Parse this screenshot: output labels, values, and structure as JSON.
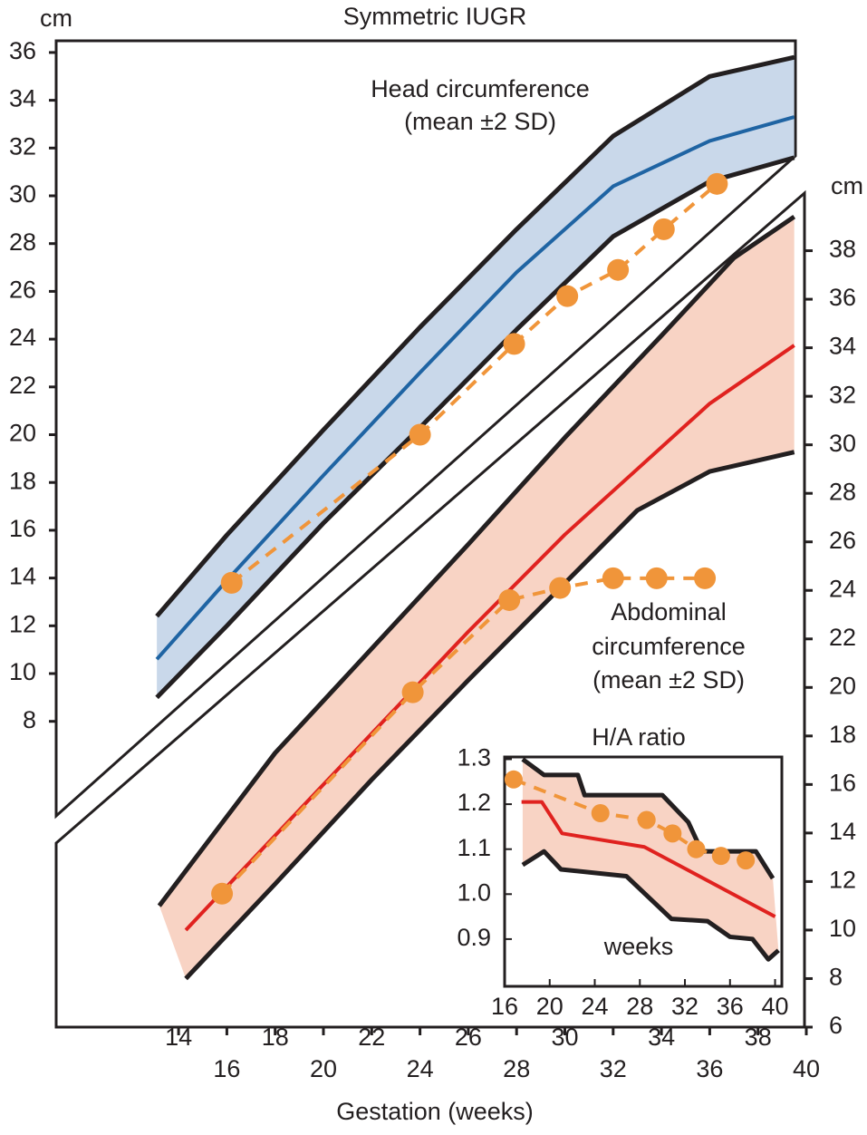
{
  "chart_data": [
    {
      "type": "line",
      "title": "Symmetric IUGR",
      "x_label": "Gestation (weeks)",
      "y_label": "cm",
      "y2_label": "cm",
      "annotations": [
        "Head circumference",
        "(mean ±2 SD)",
        "Abdominal",
        "circumference",
        "(mean ±2 SD)"
      ],
      "xlim": [
        8.93,
        40
      ],
      "xticks": [
        14,
        16,
        18,
        20,
        22,
        24,
        26,
        28,
        30,
        32,
        34,
        36,
        38,
        40
      ],
      "ylim": [
        -4.8,
        36.3
      ],
      "yticks": [
        8,
        10,
        12,
        14,
        16,
        18,
        20,
        22,
        24,
        26,
        28,
        30,
        32,
        34,
        36
      ],
      "y2lim": [
        6,
        40.3
      ],
      "y2ticks": [
        6,
        8,
        10,
        12,
        14,
        16,
        18,
        20,
        22,
        24,
        26,
        28,
        30,
        32,
        34,
        36,
        38
      ],
      "series": [
        {
          "color": "#231f20",
          "fill": "#c9d8ea",
          "x": [
            13.1,
            16,
            20,
            24,
            28,
            32,
            36,
            39.5
          ],
          "values": [
            12.4,
            15.8,
            20.2,
            24.5,
            28.6,
            32.5,
            35.0,
            35.8
          ]
        },
        {
          "color": "#1f64a3",
          "x": [
            13.1,
            16,
            20,
            24,
            28,
            32,
            36,
            39.5
          ],
          "values": [
            10.6,
            13.9,
            18.3,
            22.6,
            26.8,
            30.4,
            32.3,
            33.3
          ]
        },
        {
          "color": "#231f20",
          "x": [
            13.1,
            16,
            20,
            24,
            28,
            32,
            36,
            39.5
          ],
          "values": [
            9.0,
            12.0,
            16.3,
            20.3,
            24.4,
            28.3,
            30.6,
            31.6
          ]
        },
        {
          "color": "#f0953a",
          "dashed": true,
          "markers": true,
          "x": [
            16.2,
            24,
            27.9,
            30.1,
            32.2,
            34.1,
            36.3
          ],
          "values": [
            13.8,
            20.0,
            23.8,
            25.8,
            26.9,
            28.6,
            30.5
          ]
        },
        {
          "color": "#231f20",
          "fill": "#f8d3c4",
          "axis": "y2",
          "x": [
            13.2,
            18,
            22,
            26,
            30,
            34,
            37,
            39.5
          ],
          "values": [
            11.0,
            17.3,
            21.6,
            25.9,
            30.3,
            34.5,
            37.7,
            39.4
          ]
        },
        {
          "color": "#e0221f",
          "axis": "y2",
          "x": [
            14.3,
            18,
            22,
            26,
            30,
            33,
            36,
            39.5
          ],
          "values": [
            10.0,
            13.9,
            18.1,
            22.3,
            26.3,
            29.0,
            31.7,
            34.1
          ]
        },
        {
          "color": "#231f20",
          "axis": "y2",
          "x": [
            14.3,
            18,
            22,
            26,
            30,
            33,
            36,
            39.5
          ],
          "values": [
            8.0,
            11.9,
            16.2,
            20.3,
            24.3,
            27.3,
            28.9,
            29.7
          ]
        },
        {
          "color": "#f0953a",
          "dashed": true,
          "markers": true,
          "axis": "y2",
          "x": [
            15.8,
            23.7,
            27.7,
            29.8,
            32.0,
            33.8,
            35.8
          ],
          "values": [
            11.5,
            19.8,
            23.6,
            24.1,
            24.5,
            24.5,
            24.5
          ]
        }
      ]
    },
    {
      "type": "line",
      "title": "H/A ratio",
      "x_label": "weeks",
      "xlim": [
        16,
        40.6
      ],
      "xticks": [
        16,
        20,
        24,
        28,
        32,
        36,
        40
      ],
      "ylim": [
        0.795,
        1.305
      ],
      "yticks": [
        0.9,
        {
          "value": 1,
          "label": "1.0"
        },
        1.1,
        1.2,
        1.3
      ],
      "series": [
        {
          "color": "#231f20",
          "fill": "#f8d3c4",
          "x": [
            17.6,
            19.5,
            22.5,
            23.1,
            30,
            32.3,
            33.5,
            38.3,
            39.8
          ],
          "values": [
            1.3,
            1.265,
            1.265,
            1.22,
            1.22,
            1.16,
            1.095,
            1.095,
            1.035
          ]
        },
        {
          "color": "#e0221f",
          "x": [
            17.5,
            19.3,
            21.1,
            28.4,
            40
          ],
          "values": [
            1.205,
            1.205,
            1.135,
            1.105,
            0.95
          ]
        },
        {
          "color": "#231f20",
          "x": [
            17.6,
            19.5,
            21,
            26.8,
            30.8,
            34,
            36,
            38,
            39.4,
            40.3
          ],
          "values": [
            1.065,
            1.095,
            1.055,
            1.04,
            0.945,
            0.94,
            0.905,
            0.9,
            0.855,
            0.875
          ]
        },
        {
          "color": "#f0953a",
          "dashed": true,
          "markers": true,
          "x": [
            16.8,
            24.5,
            28.6,
            30.9,
            33,
            35.2,
            37.4
          ],
          "values": [
            1.255,
            1.18,
            1.165,
            1.135,
            1.1,
            1.085,
            1.075
          ]
        }
      ]
    }
  ]
}
